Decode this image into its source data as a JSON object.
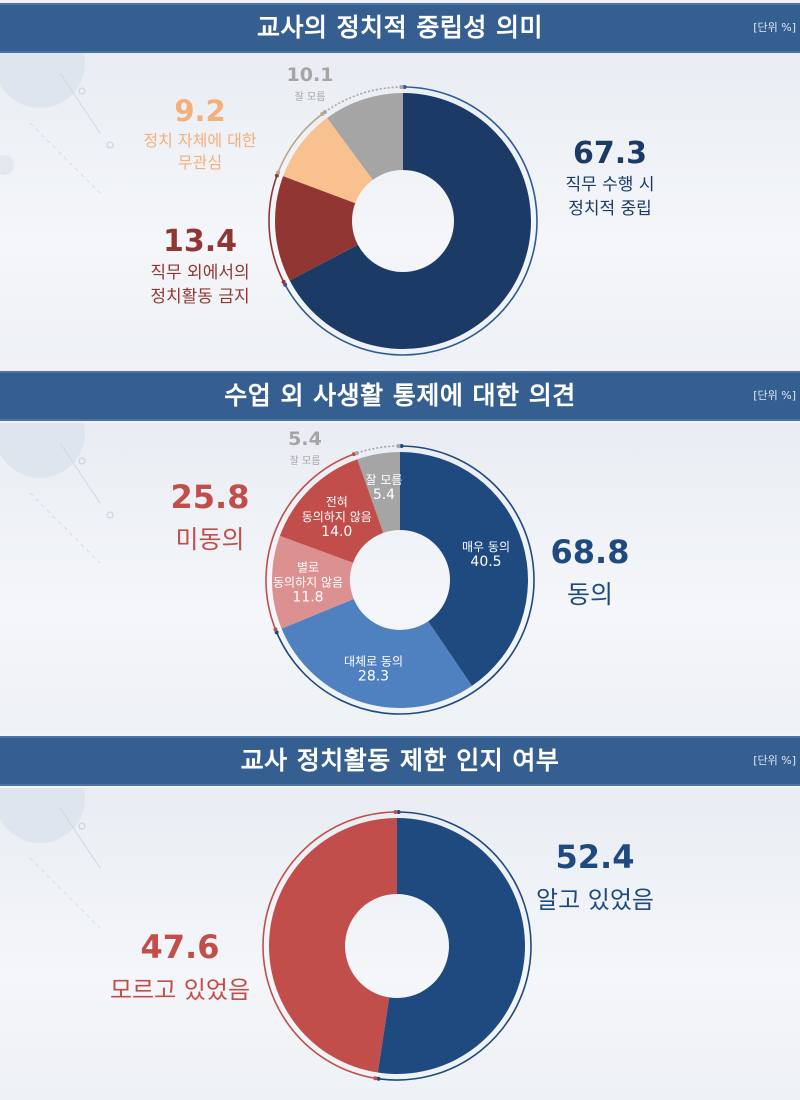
{
  "unit_label": "[단위 %]",
  "colors": {
    "header_bg": "#355f91",
    "navy": "#1b3b66",
    "blue_dark": "#1f4a80",
    "blue_mid": "#4f80c0",
    "red_dark": "#923634",
    "red": "#c24e4b",
    "red_light": "#dc9090",
    "peach": "#f8c18f",
    "gray": "#a5a5a5"
  },
  "sections": [
    {
      "title": "교사의 정치적 중립성 의미",
      "labels": [
        {
          "value": "67.3",
          "text": [
            "직무 수행 시",
            "정치적 중립"
          ],
          "color": "#1b3b66"
        },
        {
          "value": "13.4",
          "text": [
            "직무 외에서의",
            "정치활동 금지"
          ],
          "color": "#923634"
        },
        {
          "value": "9.2",
          "text": [
            "정치 자체에 대한",
            "무관심"
          ],
          "color": "#f4b07a"
        },
        {
          "value": "10.1",
          "text": [
            "잘 모름"
          ],
          "color": "#a5a5a5"
        }
      ]
    },
    {
      "title": "수업 외 사생활 통제에 대한 의견",
      "labels": [
        {
          "value": "68.8",
          "text": [
            "동의"
          ],
          "color": "#1f4a80"
        },
        {
          "value": "25.8",
          "text": [
            "미동의"
          ],
          "color": "#c24e4b"
        },
        {
          "value": "5.4",
          "text": [
            "잘 모름"
          ],
          "color": "#a5a5a5"
        }
      ],
      "segment_labels": [
        {
          "text": [
            "매우 동의",
            "40.5"
          ]
        },
        {
          "text": [
            "대체로 동의",
            "28.3"
          ]
        },
        {
          "text": [
            "별로",
            "동의하지 않음",
            "11.8"
          ]
        },
        {
          "text": [
            "전혀",
            "동의하지 않음",
            "14.0"
          ]
        },
        {
          "text": [
            "잘 모름",
            "5.4"
          ]
        }
      ]
    },
    {
      "title": "교사 정치활동 제한 인지 여부",
      "labels": [
        {
          "value": "52.4",
          "text": [
            "알고 있었음"
          ],
          "color": "#1f4a80"
        },
        {
          "value": "47.6",
          "text": [
            "모르고 있었음"
          ],
          "color": "#c24e4b"
        }
      ]
    }
  ],
  "chart_data": [
    {
      "type": "pie",
      "title": "교사의 정치적 중립성 의미",
      "unit": "%",
      "categories": [
        "직무 수행 시 정치적 중립",
        "직무 외에서의 정치활동 금지",
        "정치 자체에 대한 무관심",
        "잘 모름"
      ],
      "values": [
        67.3,
        13.4,
        9.2,
        10.1
      ],
      "colors": [
        "#1b3b66",
        "#923634",
        "#f8c18f",
        "#a5a5a5"
      ],
      "donut": true
    },
    {
      "type": "pie",
      "title": "수업 외 사생활 통제에 대한 의견",
      "unit": "%",
      "categories": [
        "매우 동의",
        "대체로 동의",
        "별로 동의하지 않음",
        "전혀 동의하지 않음",
        "잘 모름"
      ],
      "values": [
        40.5,
        28.3,
        11.8,
        14.0,
        5.4
      ],
      "colors": [
        "#1f4a80",
        "#4f80c0",
        "#dc9090",
        "#c24e4b",
        "#a5a5a5"
      ],
      "groups": [
        {
          "name": "동의",
          "value": 68.8
        },
        {
          "name": "미동의",
          "value": 25.8
        },
        {
          "name": "잘 모름",
          "value": 5.4
        }
      ],
      "donut": true
    },
    {
      "type": "pie",
      "title": "교사 정치활동 제한 인지 여부",
      "unit": "%",
      "categories": [
        "알고 있었음",
        "모르고 있었음"
      ],
      "values": [
        52.4,
        47.6
      ],
      "colors": [
        "#1f4a80",
        "#c24e4b"
      ],
      "donut": true
    }
  ]
}
